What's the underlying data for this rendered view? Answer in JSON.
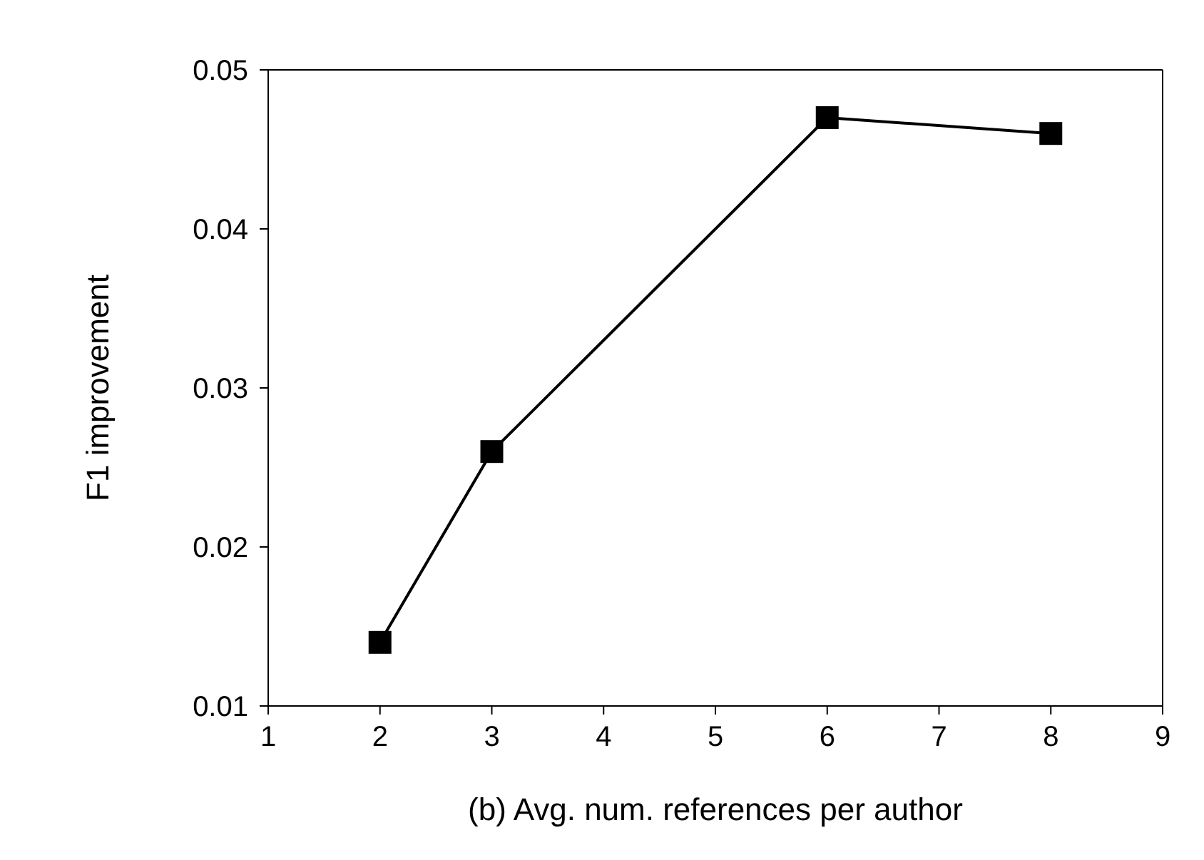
{
  "chart_data": {
    "type": "line",
    "xlabel": "(b) Avg. num. references per author",
    "ylabel": "F1 improvement",
    "x": [
      2,
      3,
      6,
      8
    ],
    "series": [
      {
        "color": "#000000",
        "values": [
          0.014,
          0.026,
          0.047,
          0.046
        ]
      }
    ],
    "xlim": [
      1,
      9
    ],
    "xticks": [
      1,
      2,
      3,
      4,
      5,
      6,
      7,
      8,
      9
    ],
    "ylim": [
      0.01,
      0.05
    ],
    "yticks": [
      0.01,
      0.02,
      0.03,
      0.04,
      0.05
    ],
    "grid": false,
    "marker": "square",
    "line_style": "solid"
  }
}
